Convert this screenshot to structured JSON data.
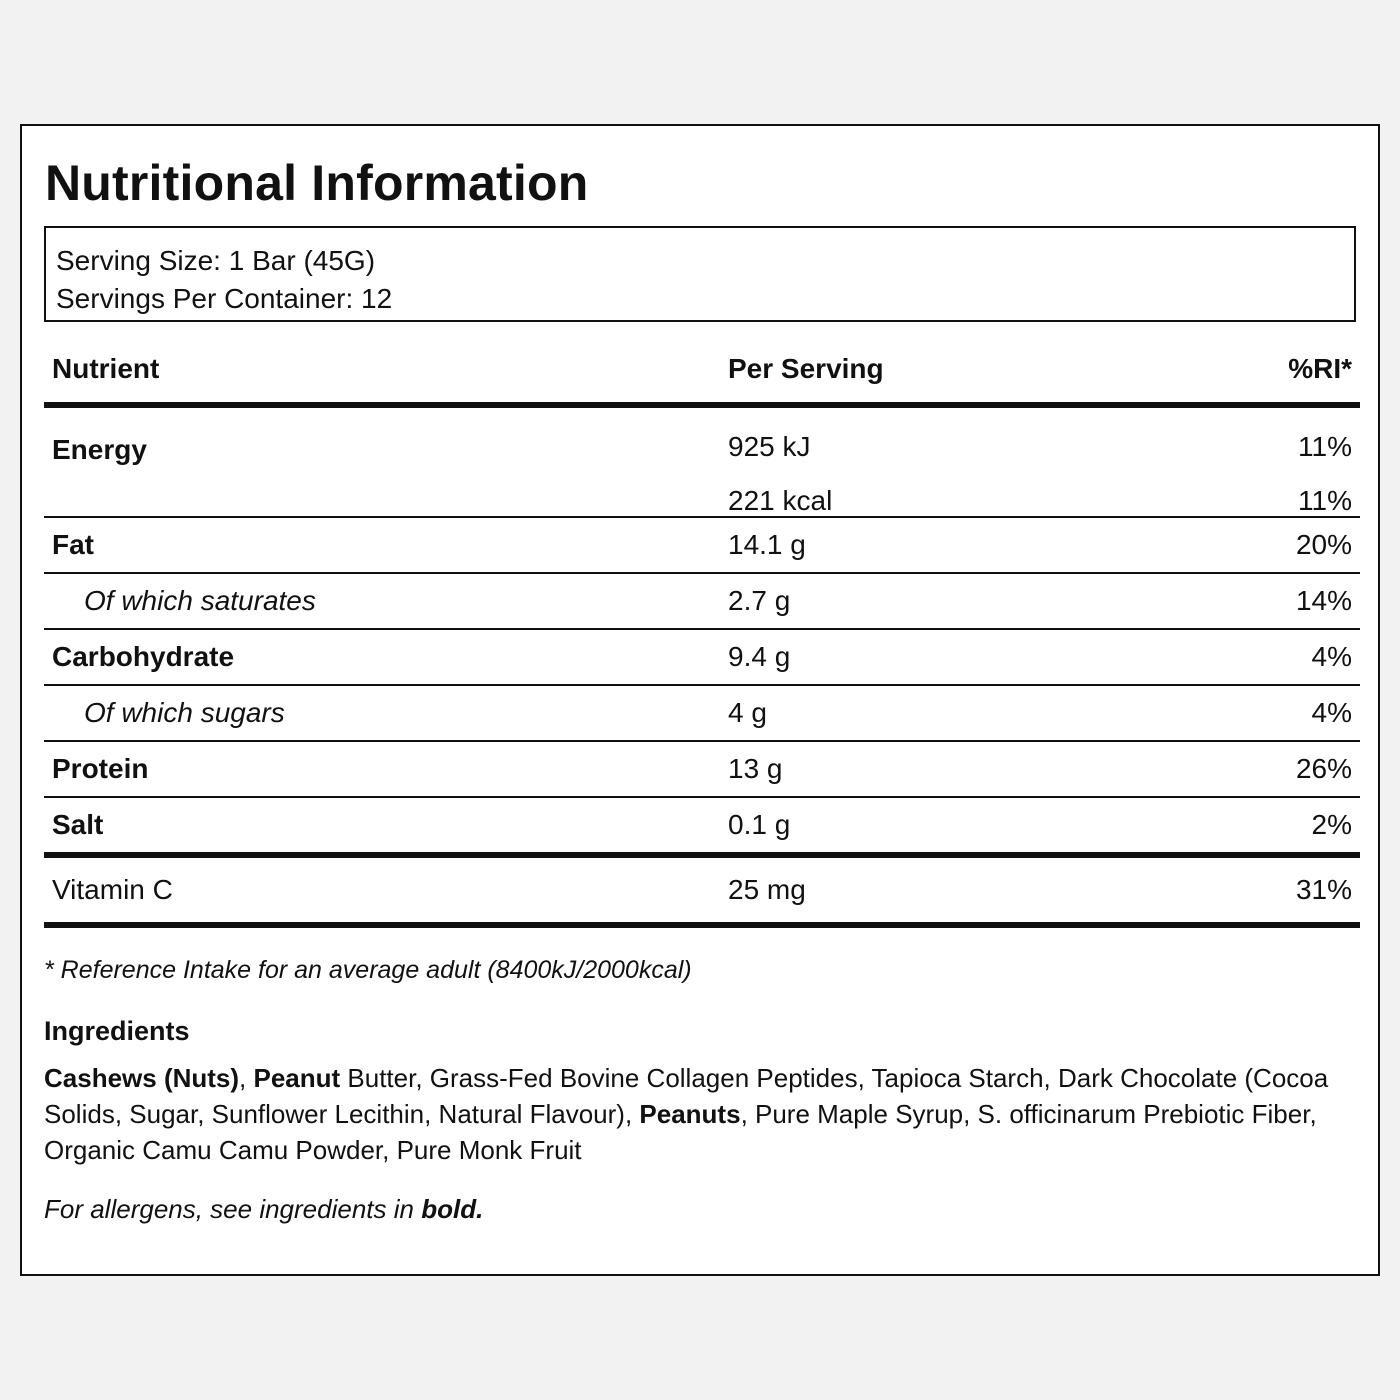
{
  "title": "Nutritional Information",
  "serving": {
    "size": "Serving Size: 1 Bar (45G)",
    "per_container": "Servings Per Container: 12"
  },
  "table": {
    "headers": [
      "Nutrient",
      "Per Serving",
      "%RI*"
    ],
    "energy": {
      "label": "Energy",
      "kj": "925 kJ",
      "kj_ri": "11%",
      "kcal": "221 kcal",
      "kcal_ri": "11%"
    },
    "rows": [
      {
        "label": "Fat",
        "value": "14.1 g",
        "ri": "20%"
      },
      {
        "label": "Of which saturates",
        "value": "2.7 g",
        "ri": "14%"
      },
      {
        "label": "Carbohydrate",
        "value": "9.4 g",
        "ri": "4%"
      },
      {
        "label": "Of which sugars",
        "value": "4 g",
        "ri": "4%"
      },
      {
        "label": "Protein",
        "value": "13 g",
        "ri": "26%"
      },
      {
        "label": "Salt",
        "value": "0.1 g",
        "ri": "2%"
      }
    ],
    "vitamin": {
      "label": "Vitamin C",
      "value": "25 mg",
      "ri": "31%"
    }
  },
  "footnote": "* Reference Intake for an average adult (8400kJ/2000kcal)",
  "ingredients": {
    "title": "Ingredients",
    "parts": [
      {
        "text": "Cashews (Nuts)",
        "bold": true
      },
      {
        "text": ", ",
        "bold": false
      },
      {
        "text": "Peanut",
        "bold": true
      },
      {
        "text": " Butter, Grass-Fed Bovine Collagen Peptides, Tapioca Starch, Dark Chocolate (Cocoa Solids, Sugar, Sunflower Lecithin, Natural Flavour), ",
        "bold": false
      },
      {
        "text": "Peanuts",
        "bold": true
      },
      {
        "text": ", Pure Maple Syrup, S. officinarum Prebiotic Fiber, Organic Camu Camu Powder, Pure Monk Fruit",
        "bold": false
      }
    ],
    "allergen_note": "For allergens, see ingredients in ",
    "allergen_note_bold": "bold."
  }
}
